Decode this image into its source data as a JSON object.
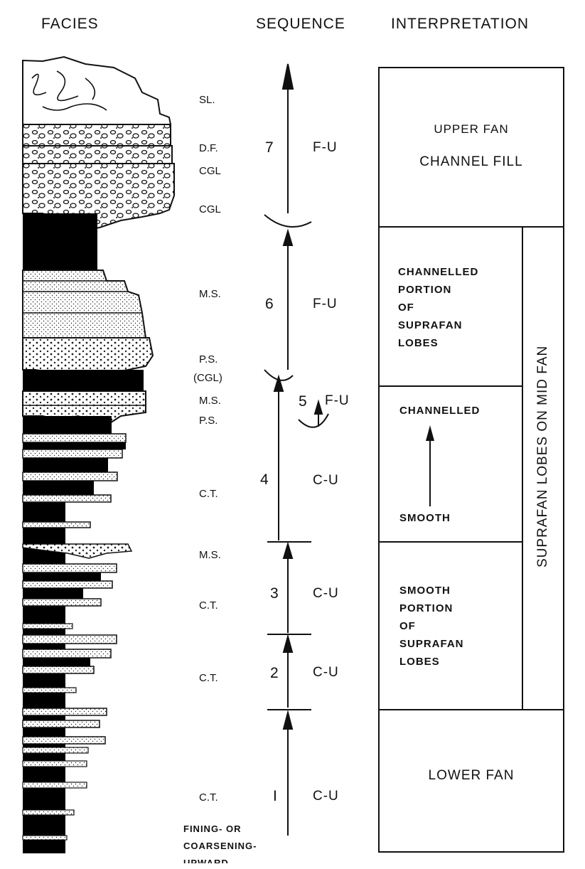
{
  "headers": {
    "facies": "FACIES",
    "sequence": "SEQUENCE",
    "interpretation": "INTERPRETATION"
  },
  "facies_labels": {
    "sl": "SL.",
    "df": "D.F.",
    "cgl1": "CGL",
    "cgl2": "CGL",
    "ms1": "M.S.",
    "ps1": "P.S.",
    "cgl_paren": "(CGL)",
    "ms2": "M.S.",
    "ps2": "P.S.",
    "ct1": "C.T.",
    "ms3": "M.S.",
    "ct2": "C.T.",
    "ct3": "C.T.",
    "ct4": "C.T."
  },
  "sequences": [
    {
      "num": "7",
      "trend": "F-U"
    },
    {
      "num": "6",
      "trend": "F-U"
    },
    {
      "num": "5",
      "trend": "F-U"
    },
    {
      "num": "4",
      "trend": "C-U"
    },
    {
      "num": "3",
      "trend": "C-U"
    },
    {
      "num": "2",
      "trend": "C-U"
    },
    {
      "num": "I",
      "trend": "C-U"
    }
  ],
  "footnote": {
    "line1": "FINING- OR",
    "line2": "COARSENING-",
    "line3": "UPWARD"
  },
  "interpretation": {
    "upper_fan_line1": "UPPER FAN",
    "upper_fan_line2": "CHANNEL FILL",
    "channelled_portion": [
      "CHANNELLED",
      "PORTION",
      "OF",
      "SUPRAFAN",
      "LOBES"
    ],
    "channelled": "CHANNELLED",
    "smooth": "SMOOTH",
    "smooth_portion": [
      "SMOOTH",
      "PORTION",
      "OF",
      "SUPRAFAN",
      "LOBES"
    ],
    "lower_fan": "LOWER FAN",
    "side_label": "SUPRAFAN LOBES ON MID FAN"
  }
}
